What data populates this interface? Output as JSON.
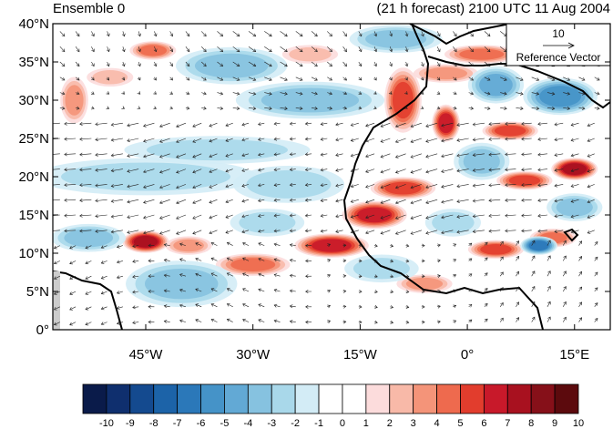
{
  "title_left": "Ensemble 0",
  "title_right": "(21 h forecast) 2100 UTC 11 Aug 2004",
  "reference_vector": {
    "magnitude": "10",
    "label": "Reference Vector"
  },
  "map": {
    "lon_range": [
      -58,
      20
    ],
    "lat_range": [
      0,
      40
    ],
    "y_ticks": [
      "40°N",
      "35°N",
      "30°N",
      "25°N",
      "20°N",
      "15°N",
      "10°N",
      "5°N",
      "0°"
    ],
    "x_ticks": [
      "45°W",
      "30°W",
      "15°W",
      "0°",
      "15°E"
    ],
    "y_tick_values": [
      40,
      35,
      30,
      25,
      20,
      15,
      10,
      5,
      0
    ],
    "x_tick_values": [
      -45,
      -30,
      -15,
      0,
      15
    ],
    "field_blobs": [
      {
        "lon": -45,
        "lat": 11.5,
        "rx": 2.5,
        "ry": 1.2,
        "v": 7
      },
      {
        "lon": -39,
        "lat": 11,
        "rx": 2.5,
        "ry": 1,
        "v": 3
      },
      {
        "lon": -30,
        "lat": 8.5,
        "rx": 4,
        "ry": 1.2,
        "v": 4
      },
      {
        "lon": -19,
        "lat": 11,
        "rx": 4,
        "ry": 1.3,
        "v": 6
      },
      {
        "lon": -13,
        "lat": 15,
        "rx": 3.5,
        "ry": 1.5,
        "v": 6
      },
      {
        "lon": -9,
        "lat": 18.5,
        "rx": 3.5,
        "ry": 1.2,
        "v": 5
      },
      {
        "lon": -9,
        "lat": 30,
        "rx": 2,
        "ry": 3.5,
        "v": 5
      },
      {
        "lon": -3,
        "lat": 27,
        "rx": 1.5,
        "ry": 2,
        "v": 6
      },
      {
        "lon": 6,
        "lat": 26,
        "rx": 3,
        "ry": 1,
        "v": 5
      },
      {
        "lon": 8,
        "lat": 19.5,
        "rx": 3,
        "ry": 1,
        "v": 5
      },
      {
        "lon": 15,
        "lat": 21,
        "rx": 2.5,
        "ry": 1.2,
        "v": 7
      },
      {
        "lon": 4,
        "lat": 10.5,
        "rx": 3,
        "ry": 1,
        "v": 5
      },
      {
        "lon": 12,
        "lat": 12,
        "rx": 2.5,
        "ry": 1,
        "v": 4
      },
      {
        "lon": -6,
        "lat": 6,
        "rx": 3,
        "ry": 1,
        "v": 3
      },
      {
        "lon": -55,
        "lat": 30,
        "rx": 1.5,
        "ry": 2.5,
        "v": 3
      },
      {
        "lon": -50,
        "lat": 33,
        "rx": 2.5,
        "ry": 1,
        "v": 2
      },
      {
        "lon": -44,
        "lat": 36.5,
        "rx": 2.5,
        "ry": 1,
        "v": 4
      },
      {
        "lon": -22,
        "lat": 36,
        "rx": 3,
        "ry": 1,
        "v": 2
      },
      {
        "lon": 2,
        "lat": 36,
        "rx": 4,
        "ry": 1,
        "v": 4
      },
      {
        "lon": -3,
        "lat": 33.5,
        "rx": 3.5,
        "ry": 1,
        "v": 3
      },
      {
        "lon": -33,
        "lat": 34.5,
        "rx": 6,
        "ry": 2,
        "v": -3
      },
      {
        "lon": -22,
        "lat": 30,
        "rx": 8,
        "ry": 2,
        "v": -3
      },
      {
        "lon": -10,
        "lat": 38,
        "rx": 5,
        "ry": 1.5,
        "v": -3
      },
      {
        "lon": 4,
        "lat": 32,
        "rx": 3,
        "ry": 2,
        "v": -4
      },
      {
        "lon": 13,
        "lat": 30.5,
        "rx": 4,
        "ry": 2,
        "v": -5
      },
      {
        "lon": -45,
        "lat": 20,
        "rx": 12,
        "ry": 2,
        "v": -2
      },
      {
        "lon": -35,
        "lat": 23.5,
        "rx": 10,
        "ry": 1.5,
        "v": -2
      },
      {
        "lon": -25,
        "lat": 19,
        "rx": 6,
        "ry": 2,
        "v": -2
      },
      {
        "lon": -40,
        "lat": 6,
        "rx": 6,
        "ry": 2.5,
        "v": -3
      },
      {
        "lon": -53,
        "lat": 12,
        "rx": 4,
        "ry": 1.5,
        "v": -3
      },
      {
        "lon": -12,
        "lat": 8,
        "rx": 4,
        "ry": 1.5,
        "v": -2
      },
      {
        "lon": 2,
        "lat": 22,
        "rx": 3,
        "ry": 2,
        "v": -3
      },
      {
        "lon": 10,
        "lat": 11,
        "rx": 2,
        "ry": 1,
        "v": -6
      },
      {
        "lon": 15,
        "lat": 16,
        "rx": 3,
        "ry": 1.5,
        "v": -3
      },
      {
        "lon": -28,
        "lat": 14,
        "rx": 4,
        "ry": 1.5,
        "v": -2
      },
      {
        "lon": -2,
        "lat": 14,
        "rx": 3,
        "ry": 1.5,
        "v": -2
      }
    ]
  },
  "colorbar": {
    "labels": [
      "-10",
      "-9",
      "-8",
      "-7",
      "-6",
      "-5",
      "-4",
      "-3",
      "-2",
      "-1",
      "0",
      "1",
      "2",
      "3",
      "4",
      "5",
      "6",
      "7",
      "8",
      "9",
      "10"
    ],
    "colors": [
      "#0a1b4a",
      "#0f2f6e",
      "#144a8f",
      "#1c63a8",
      "#2b78b9",
      "#4593c8",
      "#62a9d5",
      "#86c2e0",
      "#a9d8ea",
      "#d3ecf6",
      "#ffffff",
      "#ffffff",
      "#fcdcdc",
      "#f8b9a8",
      "#f49479",
      "#ee6a4e",
      "#e23d2d",
      "#c8192a",
      "#a8111f",
      "#861019",
      "#5c0a0d"
    ]
  }
}
